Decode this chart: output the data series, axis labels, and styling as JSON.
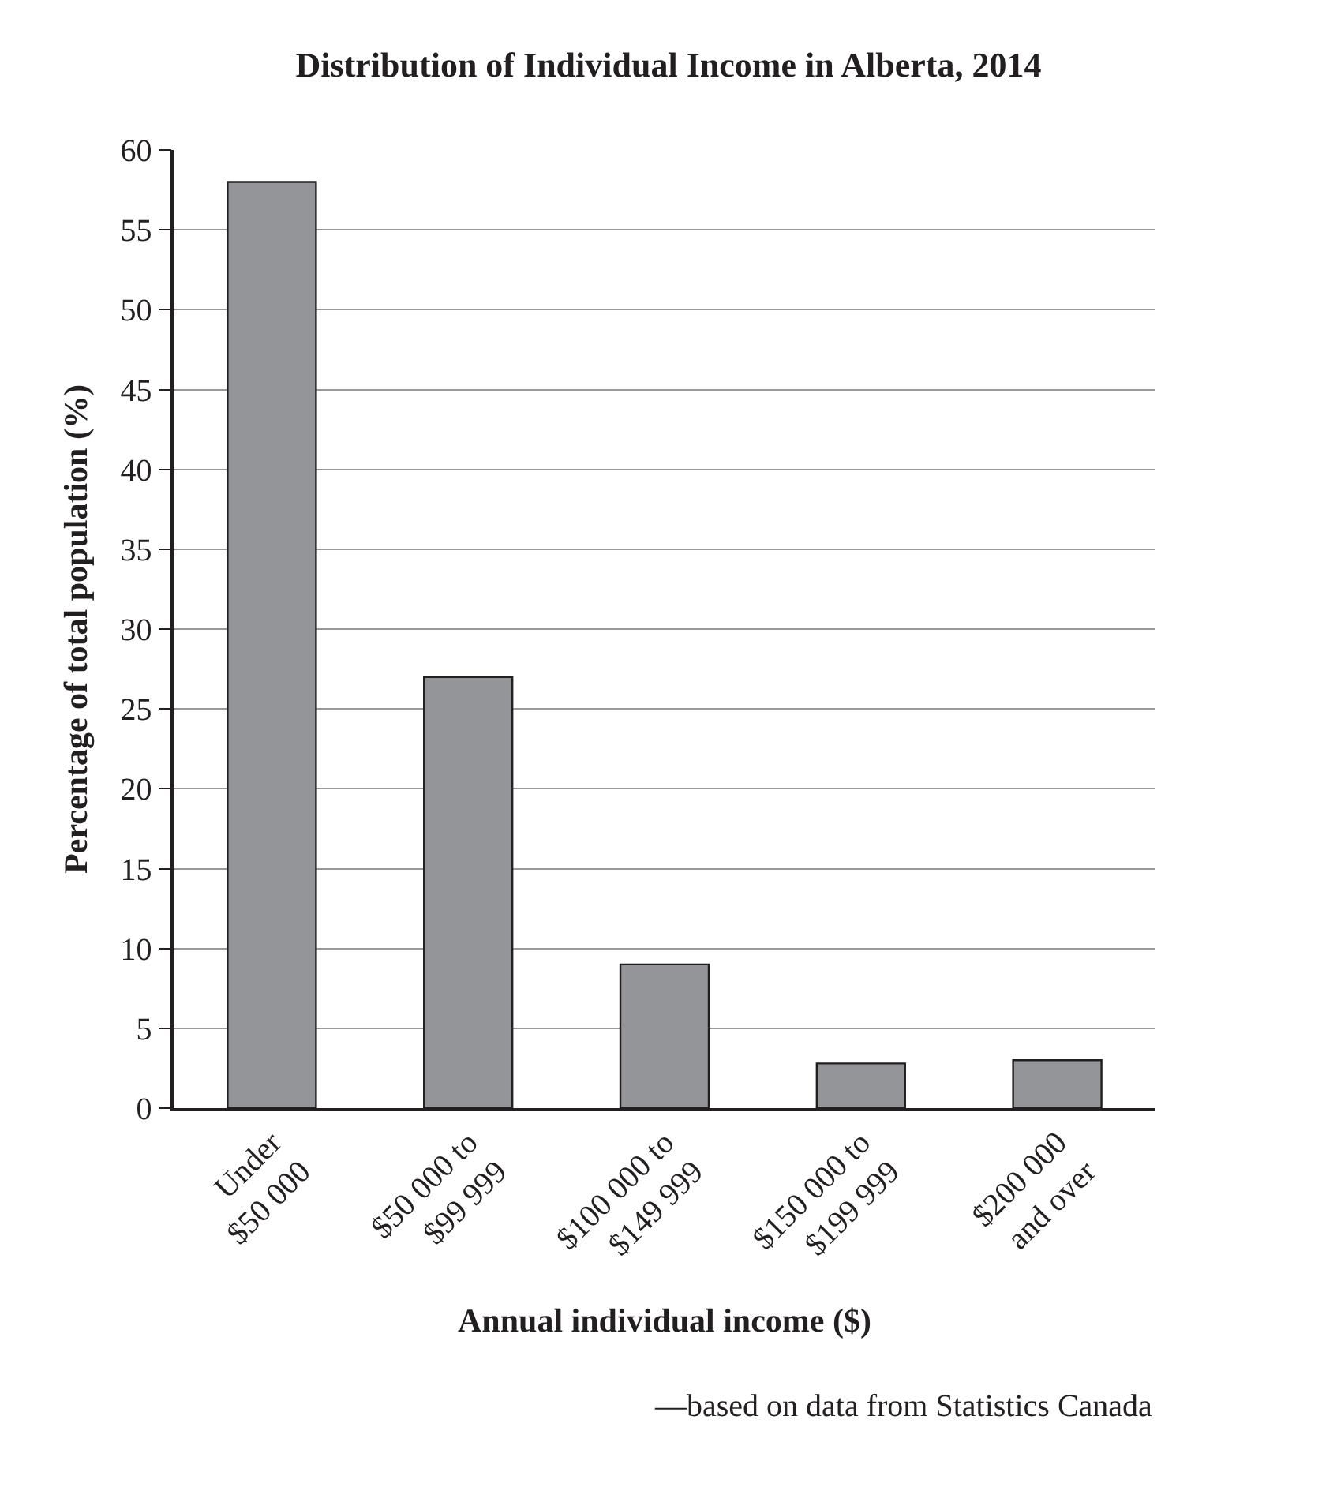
{
  "chart_data": {
    "type": "bar",
    "title": "Distribution of Individual Income in Alberta, 2014",
    "xlabel": "Annual individual income ($)",
    "ylabel": "Percentage of total population (%)",
    "categories": [
      "Under\n$50 000",
      "$50 000 to\n$99 999",
      "$100 000 to\n$149 999",
      "$150 000 to\n$199 999",
      "$200 000\nand over"
    ],
    "values": [
      58,
      27,
      9,
      2.8,
      3
    ],
    "color": "#939598",
    "ylim": [
      0,
      60
    ],
    "yticks": [
      0,
      5,
      10,
      15,
      20,
      25,
      30,
      35,
      40,
      45,
      50,
      55,
      60
    ],
    "grid": "y",
    "legend": false,
    "annotations": [
      "—based on data from Statistics Canada"
    ]
  }
}
